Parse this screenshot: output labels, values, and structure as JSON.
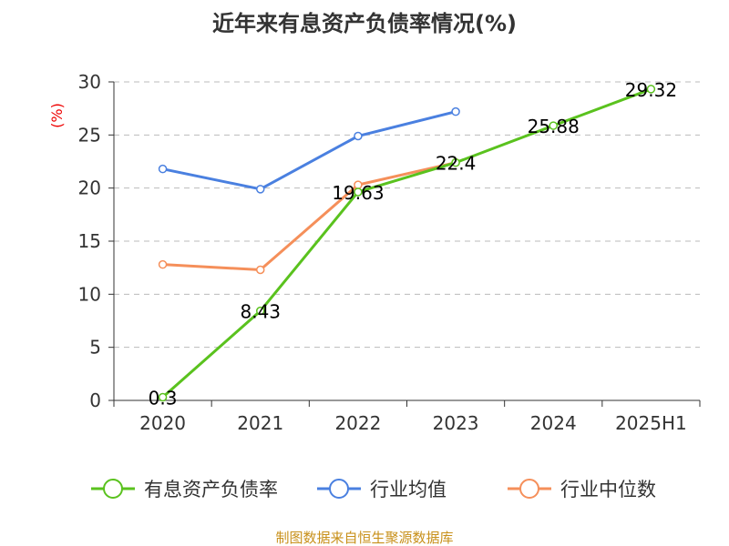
{
  "chart_data": {
    "type": "line",
    "title": "近年来有息资产负债率情况(%)",
    "ylabel": "(%)",
    "xlabel": "",
    "categories": [
      "2020",
      "2021",
      "2022",
      "2023",
      "2024",
      "2025H1"
    ],
    "ylim": [
      0,
      30
    ],
    "yticks": [
      0,
      5,
      10,
      15,
      20,
      25,
      30
    ],
    "grid": true,
    "legend_position": "bottom",
    "series": [
      {
        "name": "有息资产负债率",
        "color": "#5ac21e",
        "values": [
          0.3,
          8.43,
          19.63,
          22.4,
          25.88,
          29.32
        ],
        "labels": [
          "0.3",
          "8.43",
          "19.63",
          "22.4",
          "25.88",
          "29.32"
        ]
      },
      {
        "name": "行业均值",
        "color": "#4a80e0",
        "values": [
          21.8,
          19.9,
          24.9,
          27.2,
          null,
          null
        ]
      },
      {
        "name": "行业中位数",
        "color": "#f58f5a",
        "values": [
          12.8,
          12.3,
          20.3,
          22.4,
          null,
          null
        ]
      }
    ]
  },
  "source": "制图数据来自恒生聚源数据库"
}
